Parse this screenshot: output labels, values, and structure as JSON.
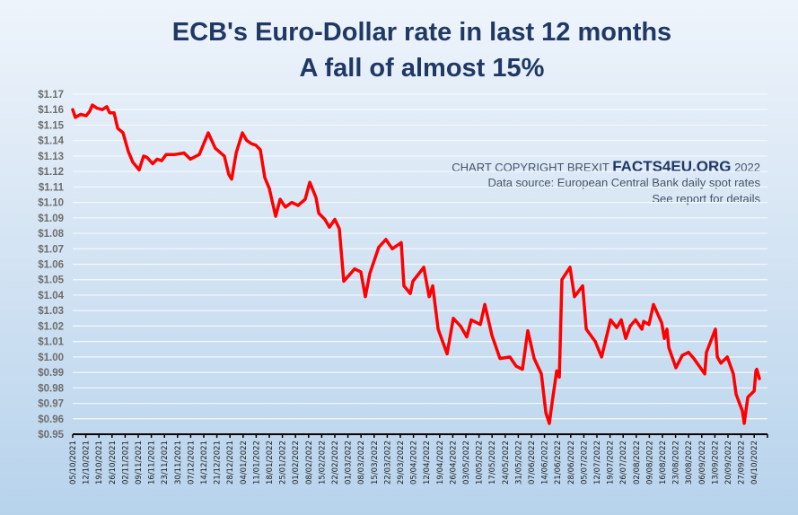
{
  "chart_data": {
    "type": "line",
    "title": "ECB's Euro-Dollar rate in last 12 months",
    "subtitle": "A fall of almost 15%",
    "xlabel": "",
    "ylabel": "",
    "ylim": [
      0.95,
      1.17
    ],
    "yticks": [
      "$0.95",
      "$0.96",
      "$0.97",
      "$0.98",
      "$0.99",
      "$1.00",
      "$1.01",
      "$1.02",
      "$1.03",
      "$1.04",
      "$1.05",
      "$1.06",
      "$1.07",
      "$1.08",
      "$1.09",
      "$1.10",
      "$1.11",
      "$1.12",
      "$1.13",
      "$1.14",
      "$1.15",
      "$1.16",
      "$1.17"
    ],
    "xticks": [
      "05/10/2021",
      "12/10/2021",
      "19/10/2021",
      "26/10/2021",
      "02/11/2021",
      "09/11/2021",
      "16/11/2021",
      "23/11/2021",
      "30/11/2021",
      "07/12/2021",
      "14/12/2021",
      "21/12/2021",
      "28/12/2021",
      "04/01/2022",
      "11/01/2022",
      "18/01/2022",
      "25/01/2022",
      "01/02/2022",
      "08/02/2022",
      "15/02/2022",
      "22/02/2022",
      "01/03/2022",
      "08/03/2022",
      "15/03/2022",
      "22/03/2022",
      "29/03/2022",
      "05/04/2022",
      "12/04/2022",
      "19/04/2022",
      "26/04/2022",
      "03/05/2022",
      "10/05/2022",
      "17/05/2022",
      "24/05/2022",
      "31/05/2022",
      "07/06/2022",
      "14/06/2022",
      "21/06/2022",
      "28/06/2022",
      "05/07/2022",
      "12/07/2022",
      "19/07/2022",
      "26/07/2022",
      "02/08/2022",
      "09/08/2022",
      "16/08/2022",
      "23/08/2022",
      "30/08/2022",
      "06/09/2022",
      "13/09/2022",
      "20/09/2022",
      "27/09/2022",
      "04/10/2022"
    ],
    "grid": true,
    "legend": "none",
    "series": [
      {
        "name": "EUR/USD",
        "color": "#ff0000",
        "days_since_start": [
          0,
          1.4,
          4.3,
          7.2,
          9.1,
          10.5,
          12.9,
          15.8,
          18.2,
          19.7,
          22.1,
          24,
          26.9,
          29.7,
          32.1,
          35.5,
          37.9,
          39.8,
          42.7,
          45.1,
          47.5,
          49.9,
          54.7,
          59.5,
          62.8,
          67.6,
          72.4,
          76.2,
          81,
          83.4,
          84.9,
          87.3,
          90.6,
          93,
          95.4,
          97.8,
          100.2,
          102.6,
          105,
          108.4,
          110.8,
          113.6,
          117,
          120.4,
          124.2,
          126.6,
          130,
          131.4,
          134.7,
          137.1,
          140,
          142.4,
          144.8,
          150.6,
          153.9,
          156.3,
          158.7,
          163.5,
          167.3,
          170.7,
          175.5,
          176.9,
          180.3,
          181.7,
          187.5,
          190.4,
          192.3,
          195.2,
          200,
          203.3,
          207.1,
          210.5,
          212.9,
          217.7,
          220.1,
          223.9,
          228.2,
          233.5,
          236.9,
          240.2,
          243.1,
          246.5,
          250.3,
          252.7,
          254.6,
          256.1,
          258.5,
          259.9,
          261.3,
          265.6,
          268,
          272.4,
          274.3,
          279.1,
          282.5,
          287.3,
          290.6,
          293,
          295.4,
          297.8,
          300.6,
          304,
          305,
          307.8,
          310.2,
          314.6,
          316,
          317.4,
          318.4,
          322.2,
          325.6,
          328.9,
          331.8,
          337.6,
          338.5,
          343.3,
          344.3,
          346.2,
          349.6,
          352.9,
          354.3,
          357.7,
          358.7,
          360.6,
          364,
          364.9,
          365.4,
          366.8
        ],
        "values": [
          1.16,
          1.155,
          1.157,
          1.156,
          1.159,
          1.163,
          1.161,
          1.16,
          1.162,
          1.158,
          1.158,
          1.148,
          1.145,
          1.133,
          1.126,
          1.121,
          1.13,
          1.129,
          1.125,
          1.128,
          1.127,
          1.131,
          1.131,
          1.132,
          1.128,
          1.131,
          1.145,
          1.135,
          1.13,
          1.118,
          1.115,
          1.132,
          1.145,
          1.14,
          1.138,
          1.137,
          1.134,
          1.116,
          1.109,
          1.091,
          1.102,
          1.097,
          1.1,
          1.098,
          1.102,
          1.113,
          1.103,
          1.093,
          1.089,
          1.084,
          1.089,
          1.083,
          1.049,
          1.057,
          1.055,
          1.039,
          1.054,
          1.071,
          1.076,
          1.07,
          1.074,
          1.046,
          1.041,
          1.049,
          1.058,
          1.039,
          1.046,
          1.018,
          1.002,
          1.025,
          1.02,
          1.013,
          1.024,
          1.021,
          1.034,
          1.014,
          0.999,
          1.0,
          0.994,
          0.992,
          1.017,
          0.999,
          0.989,
          0.964,
          0.957,
          0.971,
          0.991,
          0.987,
          1.05,
          1.058,
          1.039,
          1.046,
          1.018,
          1.01,
          1.0,
          1.024,
          1.019,
          1.024,
          1.012,
          1.02,
          1.024,
          1.018,
          1.023,
          1.021,
          1.034,
          1.022,
          1.012,
          1.018,
          1.006,
          0.993,
          1.001,
          1.003,
          0.999,
          0.989,
          1.003,
          1.018,
          1.0,
          0.996,
          1.0,
          0.989,
          0.976,
          0.965,
          0.957,
          0.974,
          0.978,
          0.991,
          0.992,
          0.986
        ]
      }
    ]
  },
  "annotations": {
    "copyright_prefix": "CHART COPYRIGHT BREXIT",
    "brand": "FACTS4EU.ORG",
    "copyright_year": "2022",
    "source": "Data source: European Central Bank daily spot rates",
    "details": "See report for details"
  },
  "colors": {
    "title": "#1f3864",
    "line": "#ff0000"
  }
}
